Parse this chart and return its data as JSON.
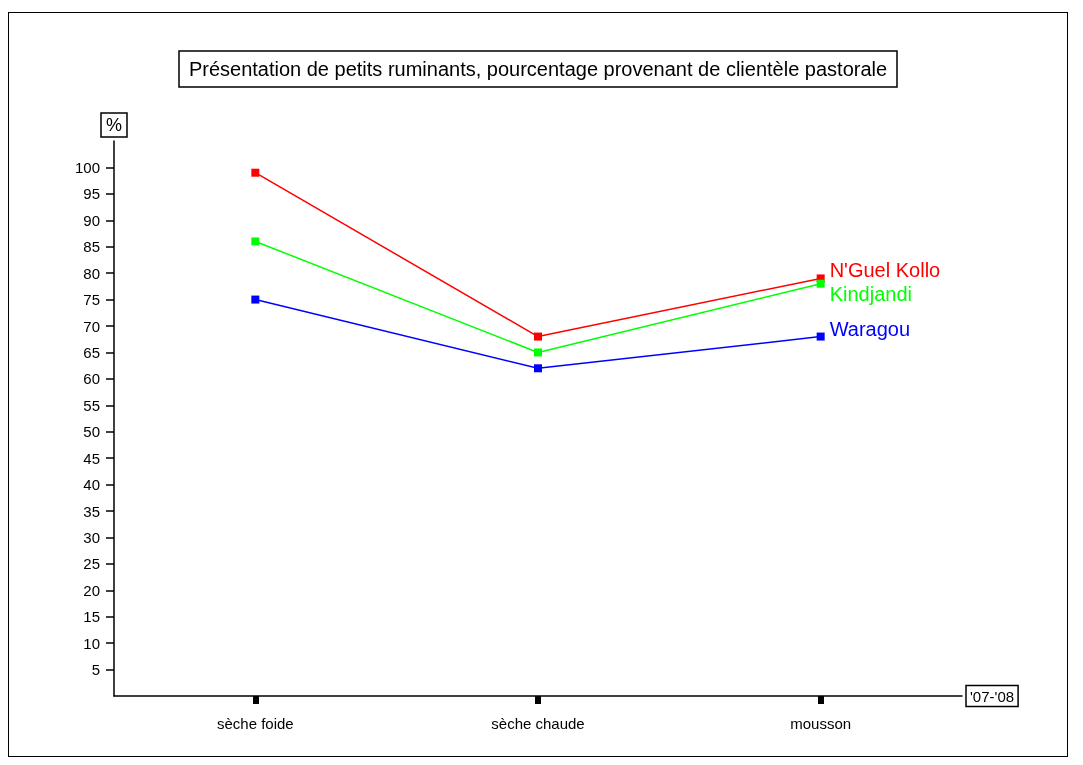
{
  "chart_data": {
    "type": "line",
    "title": "Présentation de petits ruminants, pourcentage provenant de clientèle pastorale",
    "ylabel": "%",
    "xlabel": "'07-'08",
    "categories": [
      "sèche foide",
      "sèche chaude",
      "mousson"
    ],
    "series": [
      {
        "name": "N'Guel Kollo",
        "color": "#ff0000",
        "values": [
          99,
          68,
          79
        ]
      },
      {
        "name": "Kindjandi",
        "color": "#00ff00",
        "values": [
          86,
          65,
          78
        ]
      },
      {
        "name": "Waragou",
        "color": "#0000ff",
        "values": [
          75,
          62,
          68
        ]
      }
    ],
    "ylim": [
      0,
      105
    ],
    "yticks": [
      5,
      10,
      15,
      20,
      25,
      30,
      35,
      40,
      45,
      50,
      55,
      60,
      65,
      70,
      75,
      80,
      85,
      90,
      95,
      100
    ],
    "marker": "square",
    "grid": false,
    "legend": false
  }
}
